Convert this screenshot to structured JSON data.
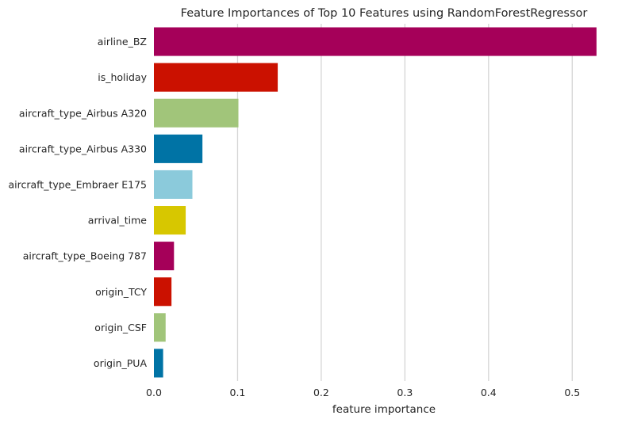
{
  "chart_data": {
    "type": "bar",
    "orientation": "horizontal",
    "title": "Feature Importances of Top 10 Features using RandomForestRegressor",
    "xlabel": "feature importance",
    "ylabel": "",
    "xlim": [
      0,
      0.55
    ],
    "xticks": [
      "0.0",
      "0.1",
      "0.2",
      "0.3",
      "0.4",
      "0.5"
    ],
    "grid": "vertical",
    "categories": [
      "airline_BZ",
      "is_holiday",
      "aircraft_type_Airbus A320",
      "aircraft_type_Airbus A330",
      "aircraft_type_Embraer E175",
      "arrival_time",
      "aircraft_type_Boeing 787",
      "origin_TCY",
      "origin_CSF",
      "origin_PUA"
    ],
    "values": [
      0.529,
      0.148,
      0.101,
      0.058,
      0.046,
      0.038,
      0.024,
      0.021,
      0.014,
      0.011
    ],
    "colors": [
      "#a50059",
      "#cb1100",
      "#a1c57a",
      "#0073a5",
      "#8bcadb",
      "#d7c700",
      "#a50059",
      "#cb1100",
      "#a1c57a",
      "#0073a5"
    ]
  }
}
